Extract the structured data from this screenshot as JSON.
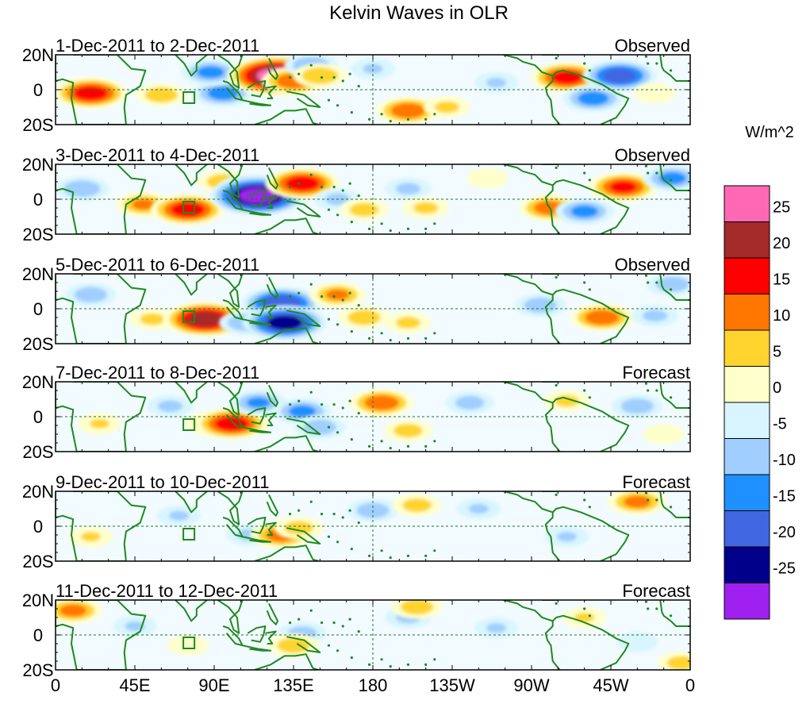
{
  "chart_data": {
    "type": "heatmap",
    "title": "Kelvin Waves in OLR",
    "colorbar": {
      "unit": "W/m^2",
      "bins": [
        {
          "range": [
            25,
            30
          ],
          "color": "#ff69b4"
        },
        {
          "range": [
            20,
            25
          ],
          "color": "#a52a2a"
        },
        {
          "range": [
            15,
            20
          ],
          "color": "#ff0000"
        },
        {
          "range": [
            10,
            15
          ],
          "color": "#ff7700"
        },
        {
          "range": [
            5,
            10
          ],
          "color": "#ffd42f"
        },
        {
          "range": [
            0,
            5
          ],
          "color": "#ffffcc"
        },
        {
          "range": [
            -5,
            0
          ],
          "color": "#d9f5ff"
        },
        {
          "range": [
            -10,
            -5
          ],
          "color": "#a0cfff"
        },
        {
          "range": [
            -15,
            -10
          ],
          "color": "#1e90ff"
        },
        {
          "range": [
            -20,
            -15
          ],
          "color": "#4166e1"
        },
        {
          "range": [
            -25,
            -20
          ],
          "color": "#00008b"
        },
        {
          "range": [
            -30,
            -25
          ],
          "color": "#a020f0"
        }
      ],
      "tick_labels": [
        "25",
        "20",
        "15",
        "10",
        "5",
        "0",
        "-5",
        "-10",
        "-15",
        "-20",
        "-25"
      ]
    },
    "x_axis": {
      "ticks": [
        "0",
        "45E",
        "90E",
        "135E",
        "180",
        "135W",
        "90W",
        "45W",
        "0"
      ],
      "lon_range": [
        0,
        360
      ]
    },
    "y_axis": {
      "ticks": [
        "20N",
        "0",
        "20S"
      ],
      "lat_range": [
        -20,
        20
      ]
    },
    "panels": [
      {
        "period": "1-Dec-2011 to 2-Dec-2011",
        "status": "Observed",
        "anomalies": [
          {
            "lon": 20,
            "lat": -2,
            "v": 18
          },
          {
            "lon": 60,
            "lat": -3,
            "v": 9
          },
          {
            "lon": 95,
            "lat": -2,
            "v": -13
          },
          {
            "lon": 88,
            "lat": 10,
            "v": -12
          },
          {
            "lon": 125,
            "lat": 8,
            "v": 27
          },
          {
            "lon": 135,
            "lat": 5,
            "v": 14
          },
          {
            "lon": 145,
            "lat": 14,
            "v": -10
          },
          {
            "lon": 150,
            "lat": 8,
            "v": 10
          },
          {
            "lon": 180,
            "lat": 12,
            "v": -6
          },
          {
            "lon": 200,
            "lat": -12,
            "v": 14
          },
          {
            "lon": 222,
            "lat": -10,
            "v": 7
          },
          {
            "lon": 250,
            "lat": 4,
            "v": -6
          },
          {
            "lon": 290,
            "lat": 7,
            "v": 17
          },
          {
            "lon": 305,
            "lat": -5,
            "v": -13
          },
          {
            "lon": 320,
            "lat": 8,
            "v": -18
          },
          {
            "lon": 340,
            "lat": -2,
            "v": 5
          }
        ]
      },
      {
        "period": "3-Dec-2011 to 4-Dec-2011",
        "status": "Observed",
        "anomalies": [
          {
            "lon": 15,
            "lat": 6,
            "v": -10
          },
          {
            "lon": 50,
            "lat": -3,
            "v": 11
          },
          {
            "lon": 75,
            "lat": -6,
            "v": 18
          },
          {
            "lon": 95,
            "lat": 10,
            "v": 9
          },
          {
            "lon": 110,
            "lat": 6,
            "v": -14
          },
          {
            "lon": 115,
            "lat": 2,
            "v": -27
          },
          {
            "lon": 140,
            "lat": 9,
            "v": 18
          },
          {
            "lon": 160,
            "lat": 0,
            "v": -7
          },
          {
            "lon": 175,
            "lat": -6,
            "v": 8
          },
          {
            "lon": 200,
            "lat": 6,
            "v": -7
          },
          {
            "lon": 210,
            "lat": -5,
            "v": 7
          },
          {
            "lon": 245,
            "lat": 12,
            "v": 5
          },
          {
            "lon": 280,
            "lat": -5,
            "v": 13
          },
          {
            "lon": 300,
            "lat": -7,
            "v": -12
          },
          {
            "lon": 322,
            "lat": 7,
            "v": 16
          },
          {
            "lon": 350,
            "lat": 12,
            "v": -12
          }
        ]
      },
      {
        "period": "5-Dec-2011 to 6-Dec-2011",
        "status": "Observed",
        "anomalies": [
          {
            "lon": 20,
            "lat": 8,
            "v": -9
          },
          {
            "lon": 55,
            "lat": -6,
            "v": 7
          },
          {
            "lon": 85,
            "lat": -6,
            "v": 22
          },
          {
            "lon": 108,
            "lat": -8,
            "v": -10
          },
          {
            "lon": 128,
            "lat": 3,
            "v": -20
          },
          {
            "lon": 130,
            "lat": -8,
            "v": -22
          },
          {
            "lon": 160,
            "lat": 8,
            "v": 11
          },
          {
            "lon": 175,
            "lat": -5,
            "v": 9
          },
          {
            "lon": 200,
            "lat": -8,
            "v": 7
          },
          {
            "lon": 275,
            "lat": 2,
            "v": -9
          },
          {
            "lon": 310,
            "lat": -5,
            "v": 14
          },
          {
            "lon": 340,
            "lat": -4,
            "v": -7
          },
          {
            "lon": 350,
            "lat": 14,
            "v": -9
          }
        ]
      },
      {
        "period": "7-Dec-2011 to 8-Dec-2011",
        "status": "Forecast",
        "anomalies": [
          {
            "lon": 25,
            "lat": -4,
            "v": 6
          },
          {
            "lon": 65,
            "lat": 6,
            "v": -7
          },
          {
            "lon": 88,
            "lat": -4,
            "v": 9
          },
          {
            "lon": 100,
            "lat": -4,
            "v": 18
          },
          {
            "lon": 115,
            "lat": 8,
            "v": -11
          },
          {
            "lon": 140,
            "lat": 3,
            "v": -12
          },
          {
            "lon": 150,
            "lat": -6,
            "v": -9
          },
          {
            "lon": 185,
            "lat": 8,
            "v": 14
          },
          {
            "lon": 200,
            "lat": -8,
            "v": 8
          },
          {
            "lon": 235,
            "lat": 8,
            "v": -8
          },
          {
            "lon": 290,
            "lat": 9,
            "v": 7
          },
          {
            "lon": 330,
            "lat": 6,
            "v": -9
          },
          {
            "lon": 345,
            "lat": -10,
            "v": 5
          }
        ]
      },
      {
        "period": "9-Dec-2011 to 10-Dec-2011",
        "status": "Forecast",
        "anomalies": [
          {
            "lon": 20,
            "lat": -6,
            "v": 6
          },
          {
            "lon": 70,
            "lat": 6,
            "v": -6
          },
          {
            "lon": 110,
            "lat": -5,
            "v": -7
          },
          {
            "lon": 128,
            "lat": -5,
            "v": 13
          },
          {
            "lon": 138,
            "lat": -1,
            "v": 8
          },
          {
            "lon": 180,
            "lat": 9,
            "v": -9
          },
          {
            "lon": 205,
            "lat": 12,
            "v": 8
          },
          {
            "lon": 240,
            "lat": 10,
            "v": -6
          },
          {
            "lon": 330,
            "lat": 14,
            "v": 12
          },
          {
            "lon": 290,
            "lat": -6,
            "v": -6
          }
        ]
      },
      {
        "period": "11-Dec-2011 to 12-Dec-2011",
        "status": "Forecast",
        "anomalies": [
          {
            "lon": 10,
            "lat": 14,
            "v": 12
          },
          {
            "lon": 45,
            "lat": 5,
            "v": -6
          },
          {
            "lon": 75,
            "lat": -6,
            "v": 5
          },
          {
            "lon": 140,
            "lat": 1,
            "v": -8
          },
          {
            "lon": 135,
            "lat": -6,
            "v": 9
          },
          {
            "lon": 200,
            "lat": 10,
            "v": -7
          },
          {
            "lon": 205,
            "lat": 16,
            "v": 9
          },
          {
            "lon": 250,
            "lat": 4,
            "v": -6
          },
          {
            "lon": 300,
            "lat": 10,
            "v": 6
          },
          {
            "lon": 330,
            "lat": -4,
            "v": -5
          },
          {
            "lon": 355,
            "lat": -16,
            "v": 8
          }
        ]
      }
    ]
  }
}
